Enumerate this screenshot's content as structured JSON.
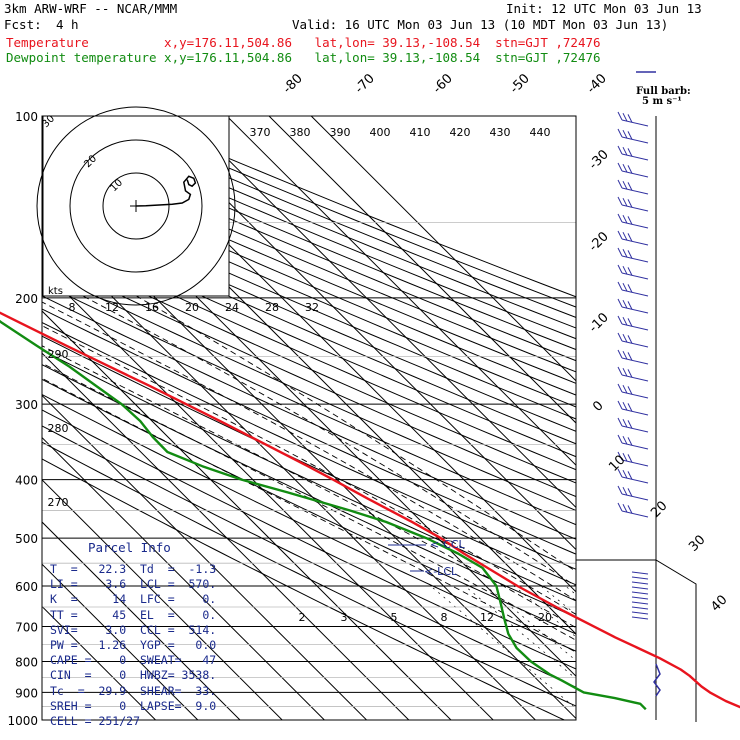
{
  "header": {
    "model": "3km ARW-WRF -- NCAR/MMM",
    "init": "Init: 12 UTC Mon 03 Jun 13",
    "fcst_label": "Fcst:",
    "fcst_value": "4 h",
    "valid": "Valid: 16 UTC Mon 03 Jun 13 (10 MDT Mon 03 Jun 13)",
    "temp_line": "Temperature          x,y=176.11,504.86   lat,lon= 39.13,-108.54  stn=GJT ,72476",
    "dew_line": "Dewpoint temperature x,y=176.11,504.86   lat,lon= 39.13,-108.54  stn=GJT ,72476"
  },
  "full_barb": {
    "line1": "Full barb:",
    "line2": "5 m s⁻¹"
  },
  "parcel": {
    "title": "Parcel Info",
    "rows": [
      "T  =   22.3  Td  =  -1.3",
      "LI =    3.6  LCL =  570.",
      "K  =     14  LFC =    0.",
      "TT =     45  EL  =    0.",
      "SVI=    3.0  CCL =  514.",
      "PW =   1.26  YGP =   0.0",
      "CAPE =    0  SWEAT=   47",
      "CIN  =    0  HWBZ= 3538.",
      "Tc  =  29.9  SHEAR=  33.",
      "SREH =    0  LAPSE=  9.0",
      "CELL = 251/27"
    ]
  },
  "chart_data": {
    "type": "line",
    "title": "",
    "pressure_levels": [
      100,
      200,
      300,
      400,
      500,
      600,
      700,
      800,
      900,
      1000
    ],
    "isotherm_labels": [
      -80,
      -70,
      -60,
      -50,
      -40,
      -30,
      -20,
      -10,
      0,
      10,
      20,
      30,
      40
    ],
    "theta_labels": [
      370,
      380,
      390,
      400,
      410,
      420,
      430,
      440
    ],
    "hodo_speed_labels": [
      8,
      12,
      16,
      20,
      24,
      28,
      32
    ],
    "hodo_unit": "kts",
    "mixing_ratio_labels": [
      "2",
      "3",
      "5",
      "8",
      "12",
      "20"
    ],
    "left_theta_labels": [
      "290",
      "280",
      "270"
    ],
    "ccl_label": "<-CCL",
    "lcl_label": "<-LCL",
    "series": [
      {
        "name": "Temperature",
        "color": "#e8141e",
        "pressure": [
          960,
          930,
          900,
          880,
          845,
          825,
          790,
          730,
          700,
          660,
          600,
          530,
          500,
          470,
          430,
          400,
          380,
          350,
          320,
          300,
          280,
          260,
          240,
          220,
          210,
          200,
          190,
          180,
          170,
          160,
          150,
          140,
          130,
          120,
          110,
          100
        ],
        "temp": [
          22.3,
          19.6,
          17.9,
          17.3,
          17.0,
          16.4,
          14.1,
          8.5,
          6.0,
          2.5,
          -2.5,
          -7.5,
          -9.3,
          -12.3,
          -17.3,
          -21.0,
          -23.8,
          -28.6,
          -33.9,
          -37.9,
          -42.2,
          -47.2,
          -52.5,
          -58.0,
          -60.9,
          -63.5,
          -64.5,
          -64.7,
          -64.0,
          -63.1,
          -62.3,
          -61.7,
          -61.5,
          -61.7,
          -62.2,
          -63.0
        ]
      },
      {
        "name": "Dewpoint temperature",
        "color": "#128c12",
        "pressure": [
          960,
          940,
          920,
          900,
          860,
          840,
          800,
          760,
          720,
          680,
          640,
          600,
          560,
          530,
          500,
          470,
          450,
          420,
          400,
          380,
          360,
          340,
          320,
          300,
          280,
          260,
          240,
          220,
          200,
          180,
          160,
          150,
          140,
          130,
          120,
          110,
          100
        ],
        "temp": [
          -1.3,
          -1.3,
          -6.0,
          -12.0,
          -14.4,
          -15.8,
          -17.2,
          -17.4,
          -16.0,
          -13.4,
          -10.5,
          -7.5,
          -6.5,
          -8.9,
          -12.7,
          -18.5,
          -24.3,
          -34.8,
          -42.7,
          -48.8,
          -53.7,
          -53.6,
          -52.8,
          -53.2,
          -54.9,
          -56.7,
          -59.5,
          -62.3,
          -64.3,
          -62.9,
          -63.6,
          -63.4,
          -63.9,
          -64.8,
          -66.4,
          -68.2,
          -71.0
        ]
      }
    ],
    "hodograph": {
      "rings_kts": [
        10,
        20,
        30
      ],
      "trace_u": [
        0,
        3,
        7,
        11,
        14,
        16,
        16.5,
        15,
        14.5,
        16,
        17.5,
        18,
        17,
        16,
        15.5
      ],
      "trace_v": [
        0,
        0.1,
        0.3,
        0.5,
        0.9,
        2.0,
        3.5,
        4.6,
        7.2,
        9.0,
        8.4,
        7.0,
        6.0,
        6.5,
        8.0
      ]
    }
  }
}
